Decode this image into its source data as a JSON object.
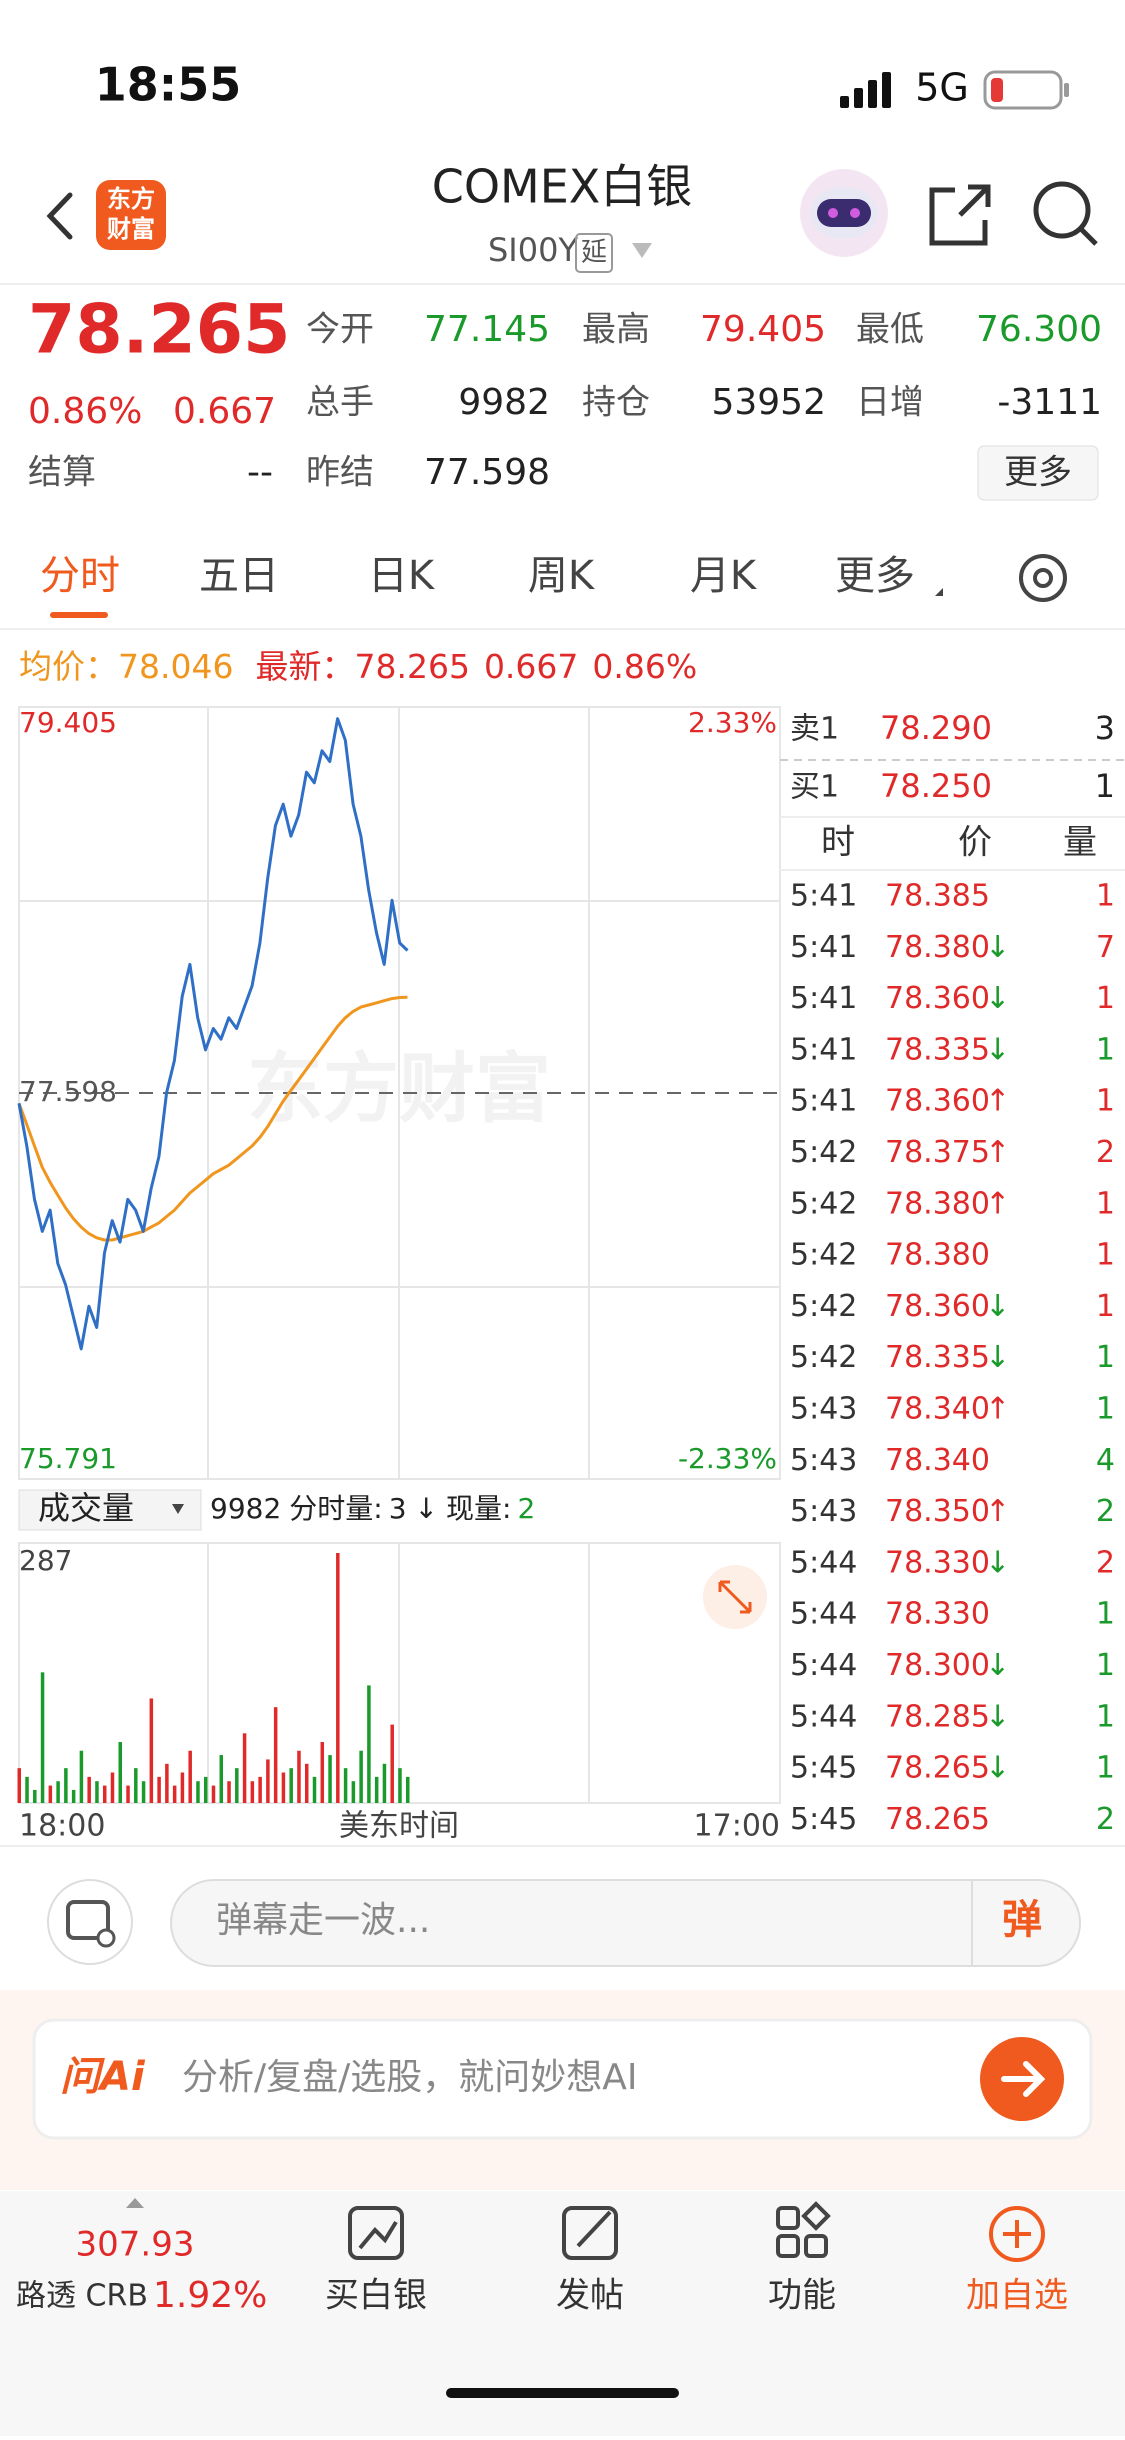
{
  "status_bar": {
    "time": "18:55",
    "network": "5G"
  },
  "header": {
    "logo_lines": [
      "东方",
      "财富"
    ],
    "title": "COMEX白银",
    "symbol": "SI00Y",
    "delay_tag": "延"
  },
  "quote": {
    "price": "78.265",
    "change_pct": "0.86%",
    "change": "0.667",
    "stats": [
      [
        {
          "label": "今开",
          "value": "77.145",
          "color": "green"
        },
        {
          "label": "最高",
          "value": "79.405",
          "color": "red"
        },
        {
          "label": "最低",
          "value": "76.300",
          "color": "green"
        }
      ],
      [
        {
          "label": "总手",
          "value": "9982",
          "color": "dark"
        },
        {
          "label": "持仓",
          "value": "53952",
          "color": "dark"
        },
        {
          "label": "日增",
          "value": "-3111",
          "color": "dark"
        }
      ],
      [
        {
          "label": "结算",
          "value": "--",
          "color": "dark"
        },
        {
          "label": "昨结",
          "value": "77.598",
          "color": "dark"
        }
      ]
    ],
    "more_button": "更多"
  },
  "tabs": [
    "分时",
    "五日",
    "日K",
    "周K",
    "月K",
    "更多"
  ],
  "info_line": {
    "avg_label": "均价：",
    "avg": "78.046",
    "latest_label": "最新：",
    "latest": "78.265",
    "change": "0.667",
    "change_pct": "0.86%"
  },
  "chart_data": {
    "type": "line",
    "ylim": [
      75.791,
      79.405
    ],
    "prev_close": 77.598,
    "pct_top": "2.33%",
    "pct_bottom": "-2.33%",
    "price_color": "#2f6fc6",
    "avg_color": "#f0961e",
    "price_values": [
      77.55,
      77.35,
      77.1,
      76.95,
      77.05,
      76.8,
      76.7,
      76.55,
      76.4,
      76.6,
      76.5,
      76.85,
      77.0,
      76.9,
      77.1,
      77.05,
      76.95,
      77.15,
      77.3,
      77.6,
      77.75,
      78.05,
      78.2,
      77.95,
      77.8,
      77.9,
      77.85,
      77.95,
      77.9,
      78.0,
      78.1,
      78.3,
      78.6,
      78.85,
      78.95,
      78.8,
      78.9,
      79.1,
      79.05,
      79.2,
      79.15,
      79.35,
      79.25,
      78.95,
      78.8,
      78.55,
      78.35,
      78.2,
      78.5,
      78.3,
      78.265
    ],
    "avg_values": [
      77.55,
      77.45,
      77.35,
      77.25,
      77.18,
      77.12,
      77.06,
      77.01,
      76.97,
      76.94,
      76.92,
      76.91,
      76.91,
      76.92,
      76.93,
      76.94,
      76.95,
      76.97,
      76.99,
      77.02,
      77.05,
      77.09,
      77.13,
      77.16,
      77.19,
      77.22,
      77.24,
      77.26,
      77.29,
      77.32,
      77.35,
      77.39,
      77.44,
      77.5,
      77.56,
      77.61,
      77.66,
      77.71,
      77.76,
      77.81,
      77.86,
      77.91,
      77.95,
      77.98,
      78.0,
      78.01,
      78.02,
      78.03,
      78.04,
      78.045,
      78.046
    ],
    "x_start": "18:00",
    "x_label": "美东时间",
    "x_end": "17:00",
    "volume": {
      "label": "成交量",
      "total": "9982",
      "minute_label": "分时量:",
      "minute": "3",
      "arrow": "↓",
      "current_label": "现量:",
      "current": "2",
      "ylim": [
        0,
        287
      ],
      "values": [
        40,
        30,
        15,
        150,
        20,
        25,
        40,
        15,
        60,
        30,
        25,
        20,
        35,
        70,
        20,
        40,
        25,
        120,
        30,
        45,
        20,
        35,
        60,
        25,
        30,
        20,
        55,
        25,
        40,
        80,
        25,
        30,
        50,
        110,
        35,
        40,
        60,
        45,
        30,
        70,
        55,
        287,
        40,
        25,
        60,
        135,
        30,
        45,
        90,
        40,
        30
      ]
    }
  },
  "order_book": {
    "sell": [
      "卖1",
      "78.290",
      "3"
    ],
    "buy": [
      "买1",
      "78.250",
      "1"
    ],
    "headers": [
      "时",
      "价",
      "量"
    ],
    "trades": [
      [
        "5:41",
        "78.385",
        null,
        "1",
        "red"
      ],
      [
        "5:41",
        "78.380",
        "↓",
        "7",
        "red"
      ],
      [
        "5:41",
        "78.360",
        "↓",
        "1",
        "red"
      ],
      [
        "5:41",
        "78.335",
        "↓",
        "1",
        "green"
      ],
      [
        "5:41",
        "78.360",
        "↑",
        "1",
        "red"
      ],
      [
        "5:42",
        "78.375",
        "↑",
        "2",
        "red"
      ],
      [
        "5:42",
        "78.380",
        "↑",
        "1",
        "red"
      ],
      [
        "5:42",
        "78.380",
        null,
        "1",
        "red"
      ],
      [
        "5:42",
        "78.360",
        "↓",
        "1",
        "red"
      ],
      [
        "5:42",
        "78.335",
        "↓",
        "1",
        "green"
      ],
      [
        "5:43",
        "78.340",
        "↑",
        "1",
        "green"
      ],
      [
        "5:43",
        "78.340",
        null,
        "4",
        "green"
      ],
      [
        "5:43",
        "78.350",
        "↑",
        "2",
        "green"
      ],
      [
        "5:44",
        "78.330",
        "↓",
        "2",
        "red"
      ],
      [
        "5:44",
        "78.330",
        null,
        "1",
        "green"
      ],
      [
        "5:44",
        "78.300",
        "↓",
        "1",
        "green"
      ],
      [
        "5:44",
        "78.285",
        "↓",
        "1",
        "green"
      ],
      [
        "5:45",
        "78.265",
        "↓",
        "1",
        "green"
      ],
      [
        "5:45",
        "78.265",
        null,
        "2",
        "green"
      ]
    ]
  },
  "comment_bar": {
    "placeholder": "弹幕走一波...",
    "button": "弹"
  },
  "ai_bar": {
    "logo": "问Ai",
    "placeholder": "分析/复盘/选股，就问妙想AI"
  },
  "bottom_nav": {
    "index_value": "307.93",
    "index_name": "路透 CRB",
    "index_change": "1.92%",
    "items": [
      "买白银",
      "发帖",
      "功能",
      "加自选"
    ]
  }
}
